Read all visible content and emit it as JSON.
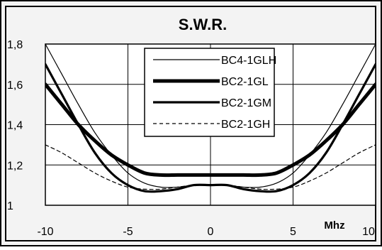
{
  "chart_data": {
    "type": "line",
    "title": "S.W.R.",
    "xlabel": "Mhz",
    "ylabel": "",
    "xlim": [
      -10,
      10
    ],
    "ylim": [
      1,
      1.8
    ],
    "x_ticks": [
      -10,
      -5,
      0,
      5,
      10
    ],
    "x_tick_labels": [
      "-10",
      "-5",
      "0",
      "5",
      "10"
    ],
    "y_ticks": [
      1,
      1.2,
      1.4,
      1.6,
      1.8
    ],
    "y_tick_labels": [
      "1",
      "1,2",
      "1,4",
      "1,6",
      "1,8"
    ],
    "grid": true,
    "legend_position": "top-center",
    "series": [
      {
        "name": "BC4-1GLH",
        "style": "thin",
        "points": [
          [
            -10,
            1.8
          ],
          [
            -9,
            1.65
          ],
          [
            -8,
            1.5
          ],
          [
            -7,
            1.36
          ],
          [
            -6,
            1.25
          ],
          [
            -5,
            1.16
          ],
          [
            -4,
            1.11
          ],
          [
            -3,
            1.09
          ],
          [
            -2,
            1.09
          ],
          [
            -1,
            1.1
          ],
          [
            0,
            1.1
          ],
          [
            1,
            1.1
          ],
          [
            2,
            1.09
          ],
          [
            3,
            1.09
          ],
          [
            4,
            1.11
          ],
          [
            5,
            1.16
          ],
          [
            6,
            1.25
          ],
          [
            7,
            1.36
          ],
          [
            8,
            1.5
          ],
          [
            9,
            1.65
          ],
          [
            10,
            1.8
          ]
        ]
      },
      {
        "name": "BC2-1GL",
        "style": "thick",
        "points": [
          [
            -10,
            1.6
          ],
          [
            -9,
            1.5
          ],
          [
            -8,
            1.4
          ],
          [
            -7,
            1.32
          ],
          [
            -6,
            1.25
          ],
          [
            -5,
            1.2
          ],
          [
            -4,
            1.16
          ],
          [
            -3,
            1.15
          ],
          [
            -2,
            1.15
          ],
          [
            -1,
            1.15
          ],
          [
            0,
            1.15
          ],
          [
            1,
            1.15
          ],
          [
            2,
            1.15
          ],
          [
            3,
            1.15
          ],
          [
            4,
            1.16
          ],
          [
            5,
            1.2
          ],
          [
            6,
            1.25
          ],
          [
            7,
            1.32
          ],
          [
            8,
            1.4
          ],
          [
            9,
            1.5
          ],
          [
            10,
            1.6
          ]
        ]
      },
      {
        "name": "BC2-1GM",
        "style": "medium",
        "points": [
          [
            -10,
            1.7
          ],
          [
            -9,
            1.55
          ],
          [
            -8,
            1.4
          ],
          [
            -7,
            1.26
          ],
          [
            -6,
            1.16
          ],
          [
            -5,
            1.1
          ],
          [
            -4,
            1.07
          ],
          [
            -3,
            1.07
          ],
          [
            -2,
            1.08
          ],
          [
            -1,
            1.1
          ],
          [
            0,
            1.1
          ],
          [
            1,
            1.1
          ],
          [
            2,
            1.08
          ],
          [
            3,
            1.07
          ],
          [
            4,
            1.07
          ],
          [
            5,
            1.1
          ],
          [
            6,
            1.16
          ],
          [
            7,
            1.26
          ],
          [
            8,
            1.4
          ],
          [
            9,
            1.55
          ],
          [
            10,
            1.7
          ]
        ]
      },
      {
        "name": "BC2-1GH",
        "style": "dashed",
        "points": [
          [
            -10,
            1.3
          ],
          [
            -9,
            1.26
          ],
          [
            -8,
            1.21
          ],
          [
            -7,
            1.16
          ],
          [
            -6,
            1.12
          ],
          [
            -5,
            1.09
          ],
          [
            -4,
            1.08
          ],
          [
            -3,
            1.08
          ],
          [
            -2,
            1.09
          ],
          [
            -1,
            1.1
          ],
          [
            0,
            1.1
          ],
          [
            1,
            1.1
          ],
          [
            2,
            1.09
          ],
          [
            3,
            1.08
          ],
          [
            4,
            1.08
          ],
          [
            5,
            1.09
          ],
          [
            6,
            1.12
          ],
          [
            7,
            1.16
          ],
          [
            8,
            1.21
          ],
          [
            9,
            1.26
          ],
          [
            10,
            1.3
          ]
        ]
      }
    ]
  }
}
